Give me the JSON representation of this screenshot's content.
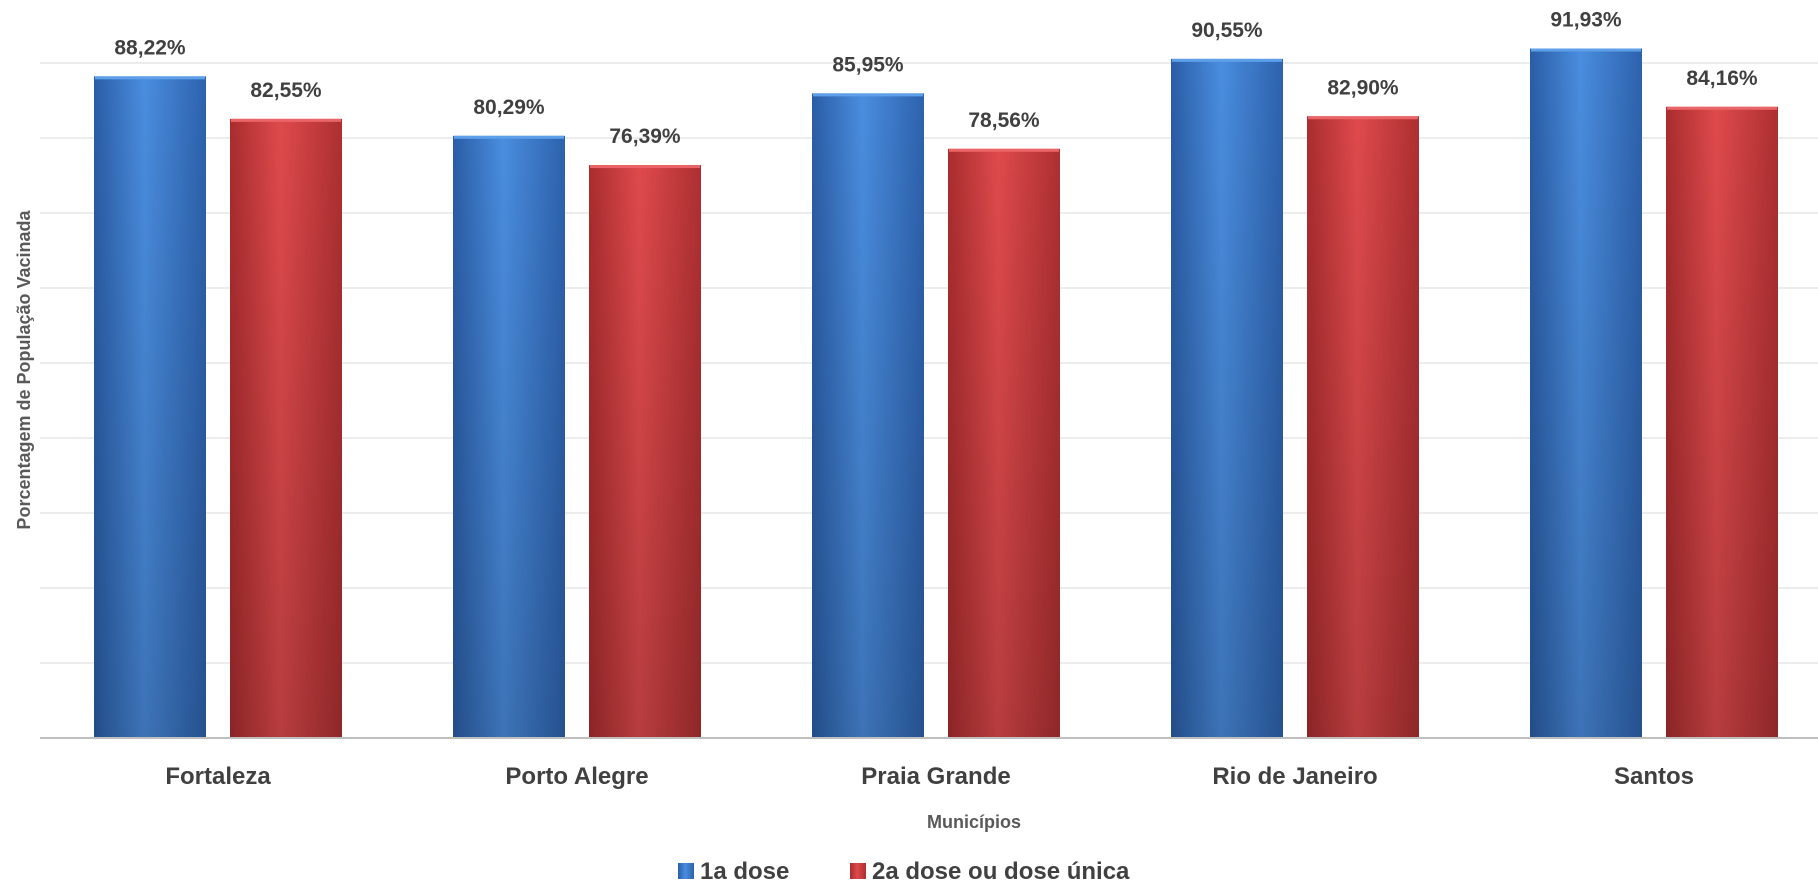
{
  "chart_data": {
    "type": "bar",
    "title": "",
    "xlabel": "Municípios",
    "ylabel": "Porcentagem de População Vacinada",
    "categories": [
      "Fortaleza",
      "Porto Alegre",
      "Praia Grande",
      "Rio de Janeiro",
      "Santos"
    ],
    "series": [
      {
        "name": "1a dose",
        "color": "#3a78c9",
        "values": [
          88.22,
          80.29,
          85.95,
          90.55,
          91.93
        ],
        "labels": [
          "88,22%",
          "80,29%",
          "85,95%",
          "90,55%",
          "91,93%"
        ]
      },
      {
        "name": "2a dose ou dose única",
        "color": "#c7373a",
        "values": [
          82.55,
          76.39,
          78.56,
          82.9,
          84.16
        ],
        "labels": [
          "82,55%",
          "76,39%",
          "78,56%",
          "82,90%",
          "84,16%"
        ]
      }
    ],
    "ylim": [
      0,
      100
    ],
    "grid": true,
    "legend_position": "bottom"
  }
}
